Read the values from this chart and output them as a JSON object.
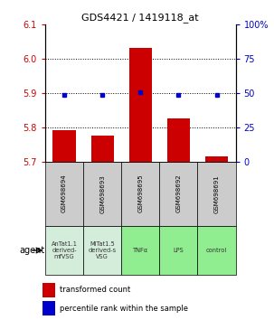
{
  "title": "GDS4421 / 1419118_at",
  "samples": [
    "GSM698694",
    "GSM698693",
    "GSM698695",
    "GSM698692",
    "GSM698691"
  ],
  "agents": [
    "AnTat1.1\nderived-\nmfVSG",
    "MiTat1.5\nderived-s\nVSG",
    "TNFα",
    "LPS",
    "control"
  ],
  "agent_colors": [
    "#d4edda",
    "#d4edda",
    "#90ee90",
    "#90ee90",
    "#90ee90"
  ],
  "sample_box_color": "#cccccc",
  "bar_values": [
    5.792,
    5.775,
    6.03,
    5.825,
    5.715
  ],
  "bar_bottom": 5.7,
  "dot_values": [
    48.5,
    48.5,
    50.5,
    48.5,
    48.5
  ],
  "bar_color": "#cc0000",
  "dot_color": "#0000cc",
  "ylim_left": [
    5.7,
    6.1
  ],
  "ylim_right": [
    0,
    100
  ],
  "yticks_left": [
    5.7,
    5.8,
    5.9,
    6.0,
    6.1
  ],
  "yticks_right": [
    0,
    25,
    50,
    75,
    100
  ],
  "grid_values": [
    5.8,
    5.9,
    6.0
  ],
  "legend_items": [
    "transformed count",
    "percentile rank within the sample"
  ],
  "legend_colors": [
    "#cc0000",
    "#0000cc"
  ],
  "agent_label": "agent",
  "background_color": "#ffffff"
}
